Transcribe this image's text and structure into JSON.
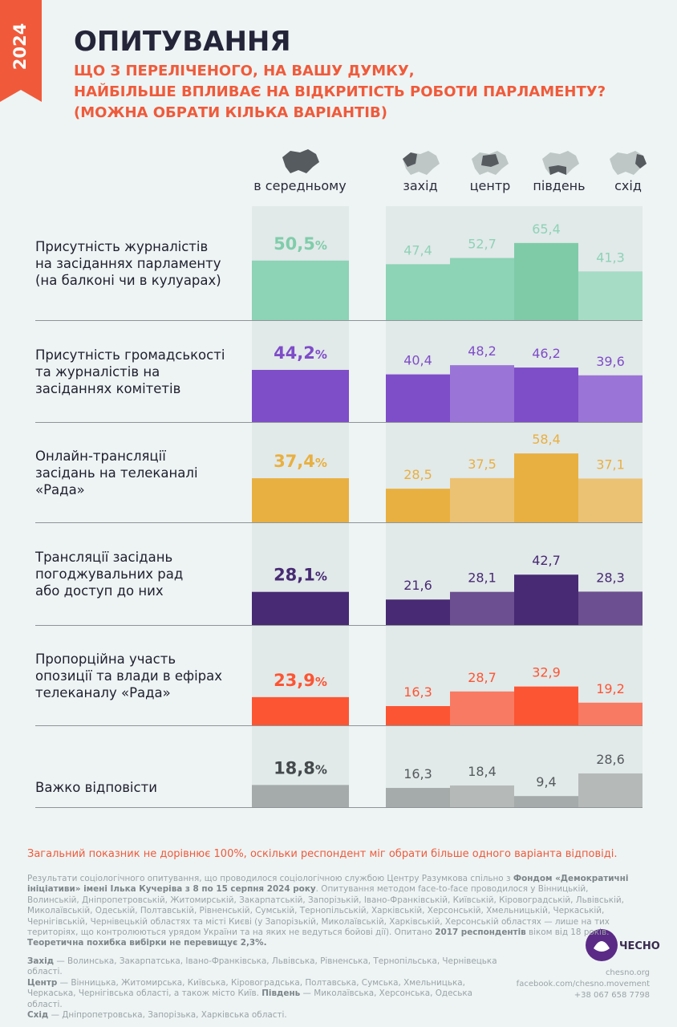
{
  "badge": "2024",
  "title": "ОПИТУВАННЯ",
  "subtitle": [
    "ЩО З ПЕРЕЛІЧЕНОГО, НА ВАШУ ДУМКУ,",
    "НАЙБІЛЬШЕ ВПЛИВАЄ НА ВІДКРИТІСТЬ РОБОТИ ПАРЛАМЕНТУ?",
    "(МОЖНА ОБРАТИ КІЛЬКА ВАРІАНТІВ)"
  ],
  "columns": {
    "average": "в середньому",
    "regions": [
      "захід",
      "центр",
      "південь",
      "схід"
    ]
  },
  "unit": "%",
  "rows": [
    {
      "label": [
        "Присутність журналістів",
        "на засіданнях парламенту",
        "(на балконі чи в кулуарах)"
      ],
      "color": "#8dd3b6",
      "text_color": "#7fcdaa",
      "average": 50.5,
      "average_label": "50,5",
      "values": [
        47.4,
        52.7,
        65.4,
        41.3
      ],
      "value_labels": [
        "47,4",
        "52,7",
        "65,4",
        "41,3"
      ],
      "region_colors": [
        "#8dd3b6",
        "#8dd3b6",
        "#7fcba8",
        "#a6dcc5"
      ],
      "region_text_color": "#8dd3b6"
    },
    {
      "label": [
        "Присутність громадськості",
        "та журналістів на",
        "засіданнях комітетів"
      ],
      "color": "#7e4dc8",
      "text_color": "#7e4dc8",
      "average": 44.2,
      "average_label": "44,2",
      "values": [
        40.4,
        48.2,
        46.2,
        39.6
      ],
      "value_labels": [
        "40,4",
        "48,2",
        "46,2",
        "39,6"
      ],
      "region_colors": [
        "#7e4dc8",
        "#9a74d6",
        "#7e4dc8",
        "#9a74d6"
      ],
      "region_text_color": "#7e4dc8"
    },
    {
      "label": [
        "Онлайн-трансляції",
        "засідань на телеканалі",
        "«Рада»"
      ],
      "color": "#e8b040",
      "text_color": "#e8b040",
      "average": 37.4,
      "average_label": "37,4",
      "values": [
        28.5,
        37.5,
        58.4,
        37.1
      ],
      "value_labels": [
        "28,5",
        "37,5",
        "58,4",
        "37,1"
      ],
      "region_colors": [
        "#e8b040",
        "#ebc274",
        "#e8b040",
        "#ebc274"
      ],
      "region_text_color": "#e8b040"
    },
    {
      "label": [
        "Трансляції засідань",
        "погоджувальних рад",
        "або доступ до них"
      ],
      "color": "#472a73",
      "text_color": "#472a73",
      "average": 28.1,
      "average_label": "28,1",
      "values": [
        21.6,
        28.1,
        42.7,
        28.3
      ],
      "value_labels": [
        "21,6",
        "28,1",
        "42,7",
        "28,3"
      ],
      "region_colors": [
        "#472a73",
        "#6b4f90",
        "#472a73",
        "#6b4f90"
      ],
      "region_text_color": "#472a73"
    },
    {
      "label": [
        "Пропорційна участь",
        "опозиції та влади в ефірах",
        "телеканалу «Рада»"
      ],
      "color": "#fc5533",
      "text_color": "#fc5533",
      "average": 23.9,
      "average_label": "23,9",
      "values": [
        16.3,
        28.7,
        32.9,
        19.2
      ],
      "value_labels": [
        "16,3",
        "28,7",
        "32,9",
        "19,2"
      ],
      "region_colors": [
        "#fc5533",
        "#f87a62",
        "#fc5533",
        "#f87a62"
      ],
      "region_text_color": "#fc5533"
    },
    {
      "label": [
        "Важко відповісти"
      ],
      "color": "#a5abaa",
      "text_color": "#444a4c",
      "average": 18.8,
      "average_label": "18,8",
      "values": [
        16.3,
        18.4,
        9.4,
        28.6
      ],
      "value_labels": [
        "16,3",
        "18,4",
        "9,4",
        "28,6"
      ],
      "region_colors": [
        "#a5abaa",
        "#b5bab9",
        "#a5abaa",
        "#b5bab9"
      ],
      "region_text_color": "#555b5d"
    }
  ],
  "note": "Загальний показник не дорівнює 100%, оскільки респондент міг обрати більше одного варіанта відповіді.",
  "method": [
    "Результати соціологічного опитування, що проводилося соціологічною службою Центру Разумкова спільно з ",
    "Фондом «Демократичні ініціативи» імені Ілька Кучеріва з 8 по 15 серпня 2024 року",
    ". Опитування методом face-to-face проводилося у Вінницькій, Волинській, Дніпропетровській, Житомирській, Закарпатській, Запорізькій, Івано-Франківській, Київській, Кіровоградській, Львівській, Миколаївській, Одеській, Полтавській, Рівненській, Сумській, Тернопільській, Харківській, Херсонській, Хмельницькій, Черкаській, Чернігівській, Чернівецькій областях та місті Києві (у Запорізькій, Миколаївській, Харківській, Херсонській областях — лише на тих територіях, що контролюються урядом України та на яких не ведуться бойові дії). Опитано ",
    "2017 респондентів",
    " віком від 18 років.",
    "Теоретична похибка вибірки не перевищує 2,3%."
  ],
  "regions_note": [
    {
      "name": "Захід",
      "text": " — Волинська, Закарпатська, Івано-Франківська, Львівська, Рівненська, Тернопільська, Чернівецька області."
    },
    {
      "name": "Центр",
      "text": " — Вінницька, Житомирська, Київська, Кіровоградська, Полтавська, Сумська, Хмельницька, Черкаська, Чернігівська області, а також місто Київ. "
    },
    {
      "name": "Південь",
      "text": " — Миколаївська, Херсонська, Одеська області."
    },
    {
      "name": "Схід",
      "text": " — Дніпропетровська, Запорізька, Харківська області."
    }
  ],
  "logo": "ЧЕСНО",
  "contacts": [
    "chesno.org",
    "facebook.com/chesno.movement",
    "+38 067 658 7798"
  ]
}
